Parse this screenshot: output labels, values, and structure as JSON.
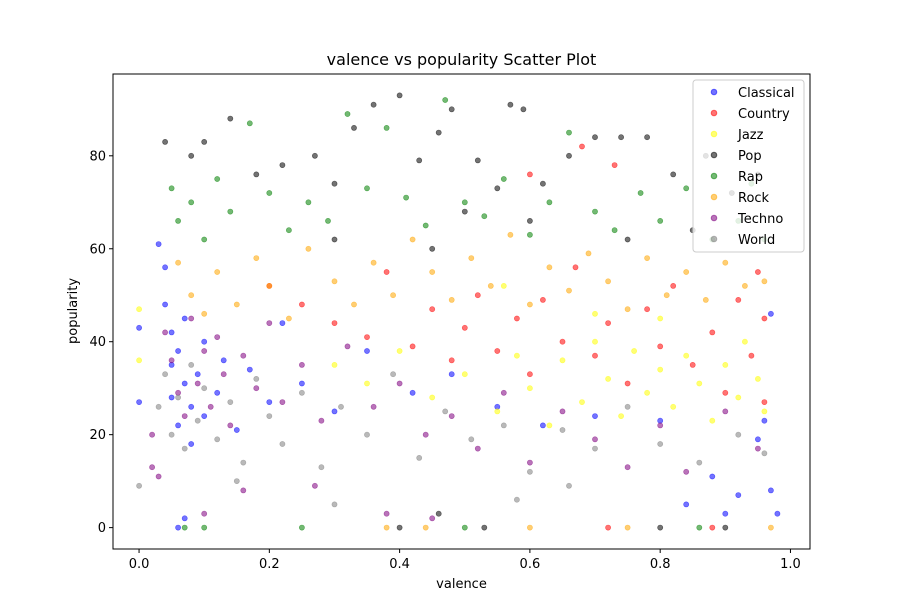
{
  "chart_data": {
    "type": "scatter",
    "title": "valence vs popularity Scatter Plot",
    "xlabel": "valence",
    "ylabel": "popularity",
    "xlim": [
      -0.04,
      1.03
    ],
    "ylim": [
      -4.6,
      97.6
    ],
    "xticks": [
      "0.0",
      "0.2",
      "0.4",
      "0.6",
      "0.8",
      "1.0"
    ],
    "yticks": [
      "0",
      "20",
      "40",
      "60",
      "80"
    ],
    "grid": false,
    "legend_position": "top-right",
    "series": [
      {
        "name": "Classical",
        "color": "#0000ff",
        "points": [
          [
            0.0,
            27
          ],
          [
            0.0,
            43
          ],
          [
            0.03,
            61
          ],
          [
            0.04,
            56
          ],
          [
            0.04,
            48
          ],
          [
            0.05,
            42
          ],
          [
            0.05,
            35
          ],
          [
            0.05,
            28
          ],
          [
            0.06,
            22
          ],
          [
            0.06,
            38
          ],
          [
            0.07,
            31
          ],
          [
            0.07,
            45
          ],
          [
            0.08,
            26
          ],
          [
            0.08,
            18
          ],
          [
            0.09,
            33
          ],
          [
            0.1,
            40
          ],
          [
            0.1,
            24
          ],
          [
            0.12,
            29
          ],
          [
            0.13,
            36
          ],
          [
            0.15,
            21
          ],
          [
            0.17,
            34
          ],
          [
            0.2,
            27
          ],
          [
            0.22,
            44
          ],
          [
            0.25,
            31
          ],
          [
            0.3,
            25
          ],
          [
            0.35,
            38
          ],
          [
            0.42,
            29
          ],
          [
            0.48,
            33
          ],
          [
            0.55,
            26
          ],
          [
            0.62,
            22
          ],
          [
            0.7,
            24
          ],
          [
            0.8,
            23
          ],
          [
            0.84,
            5
          ],
          [
            0.88,
            11
          ],
          [
            0.9,
            3
          ],
          [
            0.92,
            7
          ],
          [
            0.95,
            19
          ],
          [
            0.96,
            23
          ],
          [
            0.97,
            8
          ],
          [
            0.97,
            46
          ],
          [
            0.98,
            3
          ],
          [
            0.06,
            0
          ],
          [
            0.07,
            2
          ]
        ]
      },
      {
        "name": "Country",
        "color": "#ff0000",
        "points": [
          [
            0.2,
            52
          ],
          [
            0.25,
            48
          ],
          [
            0.3,
            44
          ],
          [
            0.35,
            41
          ],
          [
            0.38,
            55
          ],
          [
            0.42,
            39
          ],
          [
            0.45,
            47
          ],
          [
            0.48,
            36
          ],
          [
            0.5,
            43
          ],
          [
            0.52,
            50
          ],
          [
            0.55,
            38
          ],
          [
            0.58,
            45
          ],
          [
            0.6,
            33
          ],
          [
            0.62,
            49
          ],
          [
            0.65,
            40
          ],
          [
            0.67,
            56
          ],
          [
            0.7,
            37
          ],
          [
            0.72,
            44
          ],
          [
            0.75,
            31
          ],
          [
            0.78,
            47
          ],
          [
            0.8,
            39
          ],
          [
            0.82,
            52
          ],
          [
            0.85,
            35
          ],
          [
            0.88,
            42
          ],
          [
            0.9,
            29
          ],
          [
            0.92,
            49
          ],
          [
            0.94,
            37
          ],
          [
            0.95,
            55
          ],
          [
            0.96,
            27
          ],
          [
            0.96,
            45
          ],
          [
            0.68,
            82
          ],
          [
            0.73,
            78
          ],
          [
            0.6,
            76
          ],
          [
            0.72,
            0
          ],
          [
            0.88,
            0
          ]
        ]
      },
      {
        "name": "Jazz",
        "color": "#ffff00",
        "points": [
          [
            0.0,
            47
          ],
          [
            0.0,
            36
          ],
          [
            0.3,
            35
          ],
          [
            0.35,
            31
          ],
          [
            0.4,
            38
          ],
          [
            0.45,
            28
          ],
          [
            0.5,
            33
          ],
          [
            0.55,
            25
          ],
          [
            0.58,
            37
          ],
          [
            0.6,
            30
          ],
          [
            0.63,
            22
          ],
          [
            0.65,
            36
          ],
          [
            0.68,
            27
          ],
          [
            0.7,
            40
          ],
          [
            0.72,
            32
          ],
          [
            0.74,
            24
          ],
          [
            0.76,
            38
          ],
          [
            0.78,
            29
          ],
          [
            0.8,
            34
          ],
          [
            0.82,
            26
          ],
          [
            0.84,
            37
          ],
          [
            0.86,
            31
          ],
          [
            0.88,
            23
          ],
          [
            0.9,
            35
          ],
          [
            0.92,
            28
          ],
          [
            0.93,
            40
          ],
          [
            0.95,
            32
          ],
          [
            0.96,
            25
          ],
          [
            0.8,
            45
          ],
          [
            0.7,
            46
          ],
          [
            0.56,
            52
          ]
        ]
      },
      {
        "name": "Pop",
        "color": "#000000",
        "points": [
          [
            0.04,
            83
          ],
          [
            0.08,
            80
          ],
          [
            0.1,
            83
          ],
          [
            0.14,
            88
          ],
          [
            0.18,
            76
          ],
          [
            0.22,
            78
          ],
          [
            0.27,
            80
          ],
          [
            0.3,
            74
          ],
          [
            0.33,
            86
          ],
          [
            0.36,
            91
          ],
          [
            0.4,
            93
          ],
          [
            0.43,
            79
          ],
          [
            0.46,
            85
          ],
          [
            0.48,
            90
          ],
          [
            0.52,
            79
          ],
          [
            0.55,
            73
          ],
          [
            0.57,
            91
          ],
          [
            0.59,
            90
          ],
          [
            0.62,
            74
          ],
          [
            0.66,
            80
          ],
          [
            0.7,
            84
          ],
          [
            0.74,
            84
          ],
          [
            0.78,
            84
          ],
          [
            0.82,
            76
          ],
          [
            0.87,
            80
          ],
          [
            0.91,
            72
          ],
          [
            0.95,
            76
          ],
          [
            0.3,
            62
          ],
          [
            0.45,
            60
          ],
          [
            0.6,
            66
          ],
          [
            0.75,
            62
          ],
          [
            0.85,
            64
          ],
          [
            0.5,
            68
          ],
          [
            0.4,
            0
          ],
          [
            0.46,
            3
          ],
          [
            0.53,
            0
          ],
          [
            0.8,
            0
          ],
          [
            0.9,
            0
          ]
        ]
      },
      {
        "name": "Rap",
        "color": "#008000",
        "points": [
          [
            0.05,
            73
          ],
          [
            0.06,
            66
          ],
          [
            0.08,
            70
          ],
          [
            0.1,
            62
          ],
          [
            0.12,
            75
          ],
          [
            0.14,
            68
          ],
          [
            0.17,
            87
          ],
          [
            0.2,
            72
          ],
          [
            0.23,
            64
          ],
          [
            0.26,
            70
          ],
          [
            0.29,
            66
          ],
          [
            0.32,
            89
          ],
          [
            0.35,
            73
          ],
          [
            0.38,
            86
          ],
          [
            0.41,
            71
          ],
          [
            0.44,
            65
          ],
          [
            0.47,
            92
          ],
          [
            0.5,
            70
          ],
          [
            0.53,
            67
          ],
          [
            0.56,
            75
          ],
          [
            0.6,
            63
          ],
          [
            0.63,
            70
          ],
          [
            0.66,
            85
          ],
          [
            0.7,
            68
          ],
          [
            0.73,
            64
          ],
          [
            0.77,
            72
          ],
          [
            0.8,
            66
          ],
          [
            0.84,
            73
          ],
          [
            0.88,
            62
          ],
          [
            0.92,
            66
          ],
          [
            0.94,
            74
          ],
          [
            0.96,
            62
          ],
          [
            0.07,
            0
          ],
          [
            0.1,
            0
          ],
          [
            0.25,
            0
          ],
          [
            0.5,
            0
          ],
          [
            0.86,
            0
          ]
        ]
      },
      {
        "name": "Rock",
        "color": "#ffa500",
        "points": [
          [
            0.06,
            57
          ],
          [
            0.08,
            50
          ],
          [
            0.1,
            46
          ],
          [
            0.12,
            55
          ],
          [
            0.15,
            48
          ],
          [
            0.18,
            58
          ],
          [
            0.2,
            52
          ],
          [
            0.23,
            45
          ],
          [
            0.26,
            60
          ],
          [
            0.3,
            53
          ],
          [
            0.33,
            48
          ],
          [
            0.36,
            57
          ],
          [
            0.39,
            50
          ],
          [
            0.42,
            62
          ],
          [
            0.45,
            55
          ],
          [
            0.48,
            49
          ],
          [
            0.51,
            58
          ],
          [
            0.54,
            52
          ],
          [
            0.57,
            63
          ],
          [
            0.6,
            48
          ],
          [
            0.63,
            56
          ],
          [
            0.66,
            51
          ],
          [
            0.69,
            59
          ],
          [
            0.72,
            53
          ],
          [
            0.75,
            47
          ],
          [
            0.78,
            58
          ],
          [
            0.81,
            50
          ],
          [
            0.84,
            55
          ],
          [
            0.87,
            49
          ],
          [
            0.9,
            57
          ],
          [
            0.93,
            52
          ],
          [
            0.96,
            53
          ],
          [
            0.97,
            0
          ],
          [
            0.75,
            0
          ],
          [
            0.44,
            0
          ],
          [
            0.38,
            0
          ],
          [
            0.6,
            0
          ]
        ]
      },
      {
        "name": "Techno",
        "color": "#800080",
        "points": [
          [
            0.02,
            20
          ],
          [
            0.02,
            13
          ],
          [
            0.03,
            11
          ],
          [
            0.04,
            42
          ],
          [
            0.05,
            36
          ],
          [
            0.06,
            29
          ],
          [
            0.07,
            24
          ],
          [
            0.08,
            45
          ],
          [
            0.09,
            31
          ],
          [
            0.1,
            38
          ],
          [
            0.11,
            26
          ],
          [
            0.12,
            41
          ],
          [
            0.13,
            33
          ],
          [
            0.14,
            22
          ],
          [
            0.16,
            37
          ],
          [
            0.18,
            30
          ],
          [
            0.2,
            44
          ],
          [
            0.22,
            27
          ],
          [
            0.25,
            35
          ],
          [
            0.28,
            23
          ],
          [
            0.32,
            39
          ],
          [
            0.36,
            26
          ],
          [
            0.4,
            31
          ],
          [
            0.44,
            20
          ],
          [
            0.48,
            24
          ],
          [
            0.52,
            17
          ],
          [
            0.56,
            29
          ],
          [
            0.6,
            14
          ],
          [
            0.65,
            25
          ],
          [
            0.7,
            19
          ],
          [
            0.75,
            13
          ],
          [
            0.8,
            22
          ],
          [
            0.84,
            12
          ],
          [
            0.9,
            25
          ],
          [
            0.95,
            17
          ],
          [
            0.1,
            3
          ],
          [
            0.16,
            8
          ],
          [
            0.27,
            9
          ],
          [
            0.38,
            3
          ],
          [
            0.45,
            2
          ]
        ]
      },
      {
        "name": "World",
        "color": "#808080",
        "points": [
          [
            0.0,
            9
          ],
          [
            0.03,
            26
          ],
          [
            0.04,
            33
          ],
          [
            0.05,
            20
          ],
          [
            0.06,
            28
          ],
          [
            0.07,
            17
          ],
          [
            0.08,
            35
          ],
          [
            0.09,
            23
          ],
          [
            0.1,
            30
          ],
          [
            0.12,
            19
          ],
          [
            0.14,
            27
          ],
          [
            0.16,
            14
          ],
          [
            0.18,
            32
          ],
          [
            0.2,
            24
          ],
          [
            0.22,
            18
          ],
          [
            0.25,
            29
          ],
          [
            0.28,
            13
          ],
          [
            0.31,
            26
          ],
          [
            0.35,
            20
          ],
          [
            0.39,
            33
          ],
          [
            0.43,
            15
          ],
          [
            0.47,
            25
          ],
          [
            0.51,
            19
          ],
          [
            0.56,
            22
          ],
          [
            0.6,
            12
          ],
          [
            0.65,
            21
          ],
          [
            0.7,
            17
          ],
          [
            0.75,
            26
          ],
          [
            0.8,
            18
          ],
          [
            0.86,
            14
          ],
          [
            0.92,
            20
          ],
          [
            0.96,
            16
          ],
          [
            0.15,
            10
          ],
          [
            0.3,
            5
          ],
          [
            0.58,
            6
          ],
          [
            0.66,
            9
          ]
        ]
      }
    ]
  }
}
